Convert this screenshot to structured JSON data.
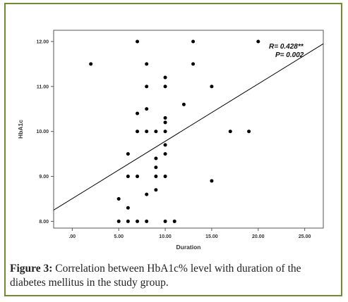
{
  "chart_data": {
    "type": "scatter",
    "xlabel": "Duration",
    "ylabel": "HbA1c",
    "xlim": [
      -2,
      27
    ],
    "ylim": [
      7.85,
      12.25
    ],
    "x_ticks": [
      0,
      5,
      10,
      15,
      20,
      25
    ],
    "x_tick_labels": [
      ".00",
      "5.00",
      "10.00",
      "15.00",
      "20.00",
      "25.00"
    ],
    "y_ticks": [
      8,
      9,
      10,
      11,
      12
    ],
    "y_tick_labels": [
      "8.00",
      "9.00",
      "10.00",
      "11.00",
      "12.00"
    ],
    "grid": false,
    "points": [
      {
        "x": 2,
        "y": 11.5
      },
      {
        "x": 7,
        "y": 12
      },
      {
        "x": 13,
        "y": 12
      },
      {
        "x": 20,
        "y": 12
      },
      {
        "x": 8,
        "y": 11.5
      },
      {
        "x": 13,
        "y": 11.5
      },
      {
        "x": 10,
        "y": 11.2
      },
      {
        "x": 8,
        "y": 11
      },
      {
        "x": 10,
        "y": 11
      },
      {
        "x": 15,
        "y": 11
      },
      {
        "x": 12,
        "y": 10.6
      },
      {
        "x": 8,
        "y": 10.5
      },
      {
        "x": 7,
        "y": 10.4
      },
      {
        "x": 10,
        "y": 10.3
      },
      {
        "x": 10,
        "y": 10.2
      },
      {
        "x": 7,
        "y": 10
      },
      {
        "x": 8,
        "y": 10
      },
      {
        "x": 9,
        "y": 10
      },
      {
        "x": 10,
        "y": 10
      },
      {
        "x": 17,
        "y": 10
      },
      {
        "x": 19,
        "y": 10
      },
      {
        "x": 10,
        "y": 9.7
      },
      {
        "x": 6,
        "y": 9.5
      },
      {
        "x": 10,
        "y": 9.5
      },
      {
        "x": 9,
        "y": 9.4
      },
      {
        "x": 9,
        "y": 9.2
      },
      {
        "x": 6,
        "y": 9
      },
      {
        "x": 7,
        "y": 9
      },
      {
        "x": 9,
        "y": 9
      },
      {
        "x": 10,
        "y": 9
      },
      {
        "x": 15,
        "y": 8.9
      },
      {
        "x": 9,
        "y": 8.7
      },
      {
        "x": 8,
        "y": 8.6
      },
      {
        "x": 5,
        "y": 8.5
      },
      {
        "x": 6,
        "y": 8.3
      },
      {
        "x": 5,
        "y": 8
      },
      {
        "x": 6,
        "y": 8
      },
      {
        "x": 7,
        "y": 8
      },
      {
        "x": 8,
        "y": 8
      },
      {
        "x": 10,
        "y": 8
      },
      {
        "x": 11,
        "y": 8
      }
    ],
    "fit_line": {
      "x0": -2,
      "y0": 8.25,
      "x1": 27,
      "y1": 11.95
    },
    "annotations": [
      "R= 0.428**",
      "P= 0.002"
    ]
  },
  "caption": {
    "label": "Figure 3:",
    "text": " Correlation between HbA1c% level with duration of the diabetes mellitus in the study group."
  },
  "colors": {
    "border": "#6d8d2e",
    "point": "#000000",
    "line": "#000000"
  }
}
